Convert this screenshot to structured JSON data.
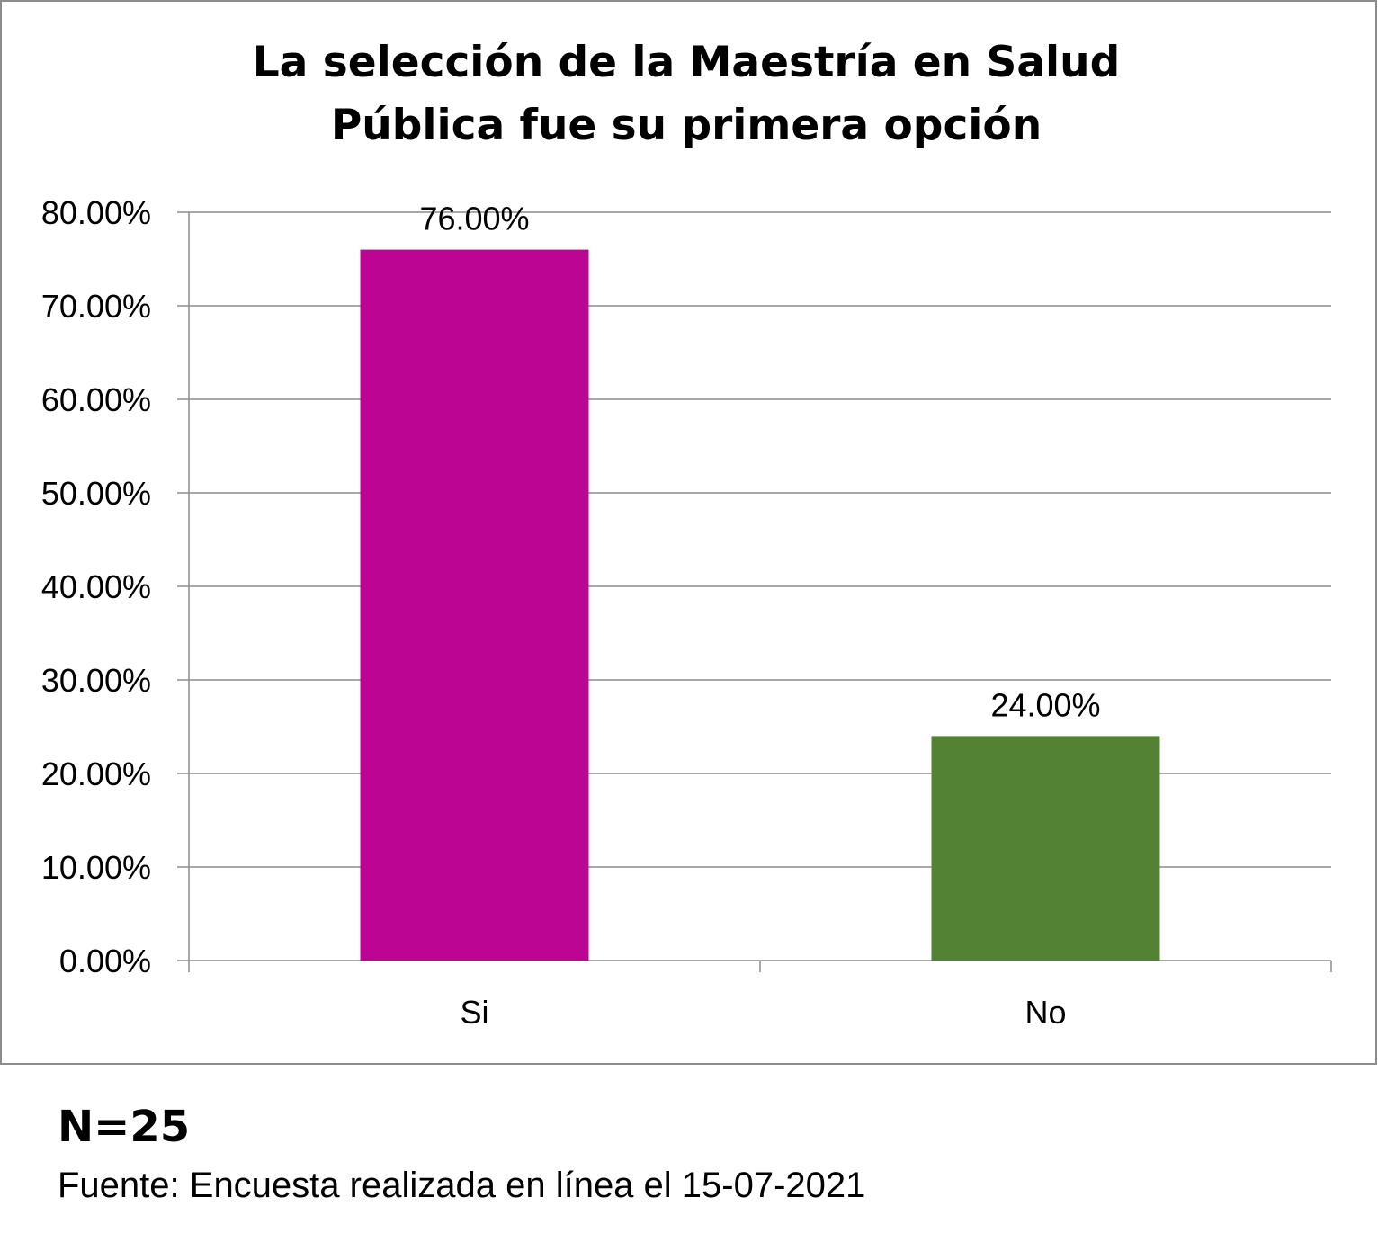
{
  "chart_data": {
    "type": "bar",
    "title_lines": [
      "La selección de la Maestría en Salud",
      "Pública fue su primera opción"
    ],
    "categories": [
      "Si",
      "No"
    ],
    "values": [
      76.0,
      24.0
    ],
    "data_labels": [
      "76.00%",
      "24.00%"
    ],
    "colors": [
      "#BC0592",
      "#548235"
    ],
    "ylim": [
      0,
      80
    ],
    "yticks": [
      0,
      10,
      20,
      30,
      40,
      50,
      60,
      70,
      80
    ],
    "ytick_labels": [
      "0.00%",
      "10.00%",
      "20.00%",
      "30.00%",
      "40.00%",
      "50.00%",
      "60.00%",
      "70.00%",
      "80.00%"
    ],
    "grid": true,
    "legend": "none",
    "xlabel": "",
    "ylabel": ""
  },
  "notes": {
    "n": "N=25",
    "source": "Fuente: Encuesta realizada en línea el 15-07-2021"
  }
}
